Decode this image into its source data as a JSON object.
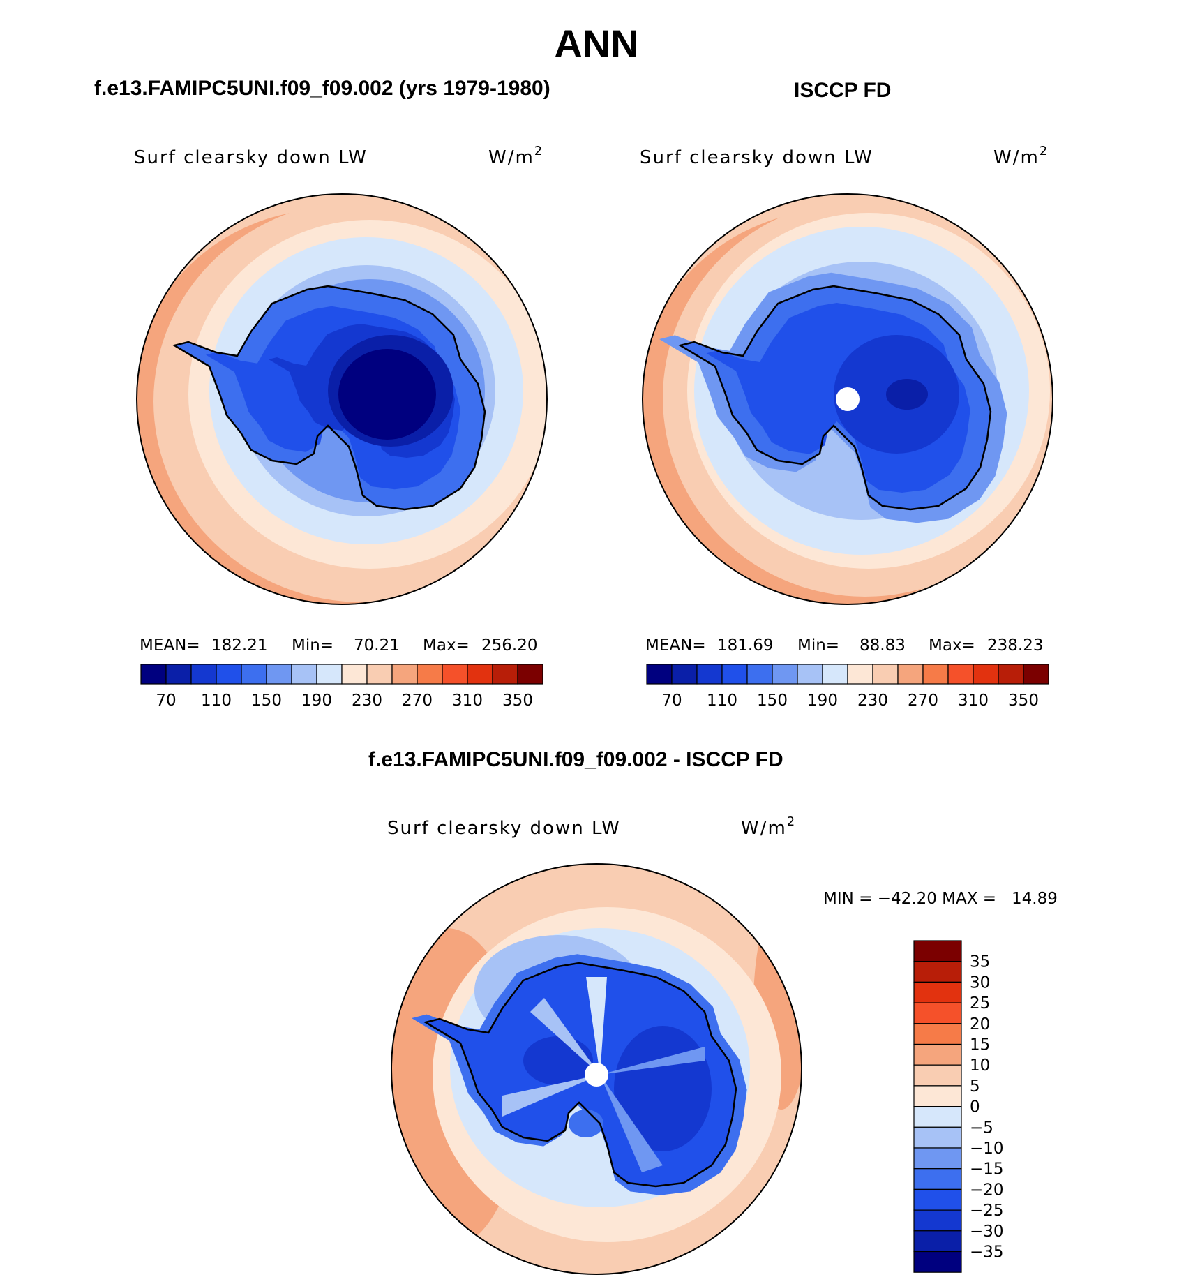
{
  "title": "ANN",
  "top_left": {
    "case_title": "f.e13.FAMIPC5UNI.f09_f09.002 (yrs 1979-1980)",
    "variable": "Surf clearsky down LW",
    "units": "W/m",
    "units_sup": "2",
    "stats": {
      "mean_label": "MEAN=",
      "mean": "182.21",
      "min_label": "Min=",
      "min": "70.21",
      "max_label": "Max=",
      "max": "256.20"
    }
  },
  "top_right": {
    "case_title": "ISCCP FD",
    "variable": "Surf clearsky down LW",
    "units": "W/m",
    "units_sup": "2",
    "stats": {
      "mean_label": "MEAN=",
      "mean": "181.69",
      "min_label": "Min=",
      "min": "88.83",
      "max_label": "Max=",
      "max": "238.23"
    }
  },
  "bottom": {
    "case_title": "f.e13.FAMIPC5UNI.f09_f09.002 - ISCCP FD",
    "variable": "Surf clearsky down LW",
    "units": "W/m",
    "units_sup": "2",
    "minmax": "MIN = −42.20 MAX =   14.89"
  },
  "abs_colorbar": {
    "colors": [
      "#00007f",
      "#0a1fa8",
      "#1438d0",
      "#2050ea",
      "#3d6fef",
      "#6f97f2",
      "#a7c2f6",
      "#d6e7fb",
      "#fde7d6",
      "#f9cdb2",
      "#f5a57d",
      "#f67b48",
      "#f5512a",
      "#e2320f",
      "#b81e08",
      "#7b0000"
    ],
    "tick_labels": [
      "70",
      "110",
      "150",
      "190",
      "230",
      "270",
      "310",
      "350"
    ]
  },
  "diff_colorbar": {
    "colors": [
      "#00007f",
      "#0a1fa8",
      "#1438d0",
      "#2050ea",
      "#3d6fef",
      "#6f97f2",
      "#a7c2f6",
      "#d6e7fb",
      "#fde7d6",
      "#f9cdb2",
      "#f5a57d",
      "#f67b48",
      "#f5512a",
      "#e2320f",
      "#b81e08",
      "#7b0000"
    ],
    "tick_labels": [
      "35",
      "30",
      "25",
      "20",
      "15",
      "10",
      "5",
      "0",
      "−5",
      "−10",
      "−15",
      "−20",
      "−25",
      "−30",
      "−35"
    ]
  }
}
